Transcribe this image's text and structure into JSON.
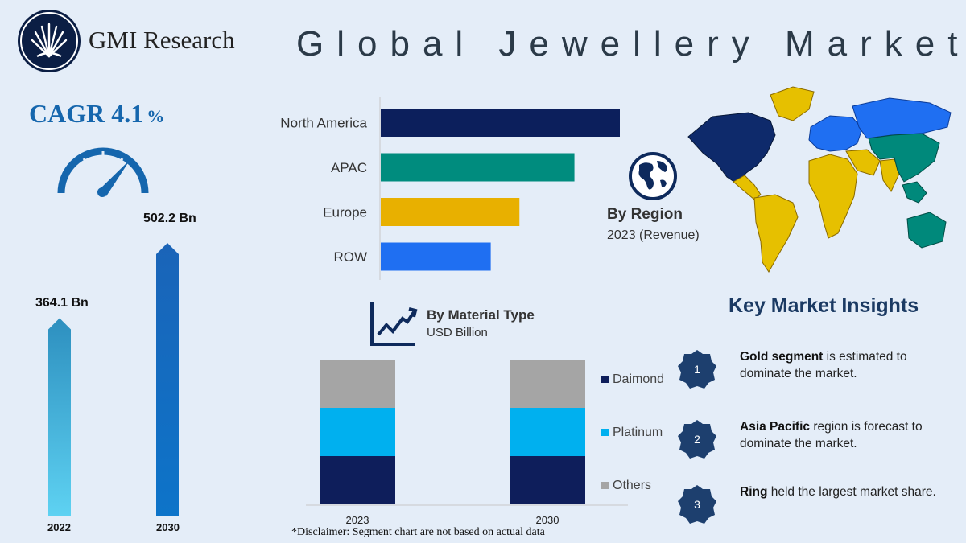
{
  "header": {
    "brand": "GMI Research",
    "title": "Global Jewellery Market"
  },
  "cagr": {
    "label": "CAGR 4.1",
    "unit": "%"
  },
  "growth": {
    "chart_data": {
      "type": "bar",
      "categories": [
        "2022",
        "2030"
      ],
      "values": [
        364.1,
        502.2
      ],
      "value_labels": [
        "364.1 Bn",
        "502.2 Bn"
      ]
    }
  },
  "region": {
    "title": "By Region",
    "subtitle": "2023 (Revenue)",
    "chart_data": {
      "type": "bar",
      "orientation": "horizontal",
      "categories": [
        "North America",
        "APAC",
        "Europe",
        "ROW"
      ],
      "values": [
        100,
        81,
        58,
        46
      ],
      "colors": [
        "#0c1f5c",
        "#008c7e",
        "#e8b000",
        "#1f6ff2"
      ]
    }
  },
  "material": {
    "title": "By Material Type",
    "subtitle": "USD Billion",
    "chart_data": {
      "type": "bar",
      "stacked": true,
      "categories": [
        "2023",
        "2030"
      ],
      "series": [
        {
          "name": "Daimond",
          "values": [
            1,
            1
          ],
          "color": "#0e1e5b"
        },
        {
          "name": "Platinum",
          "values": [
            1,
            1
          ],
          "color": "#00b0ef"
        },
        {
          "name": "Others",
          "values": [
            1,
            1
          ],
          "color": "#a5a5a5"
        }
      ],
      "legend": "right"
    },
    "disclaimer": "*Disclaimer:   Segment chart are not based on actual data"
  },
  "insights": {
    "title": "Key Market Insights",
    "items": [
      {
        "num": "1",
        "bold": "Gold segment",
        "text": " is estimated to dominate the market."
      },
      {
        "num": "2",
        "bold": "Asia Pacific",
        "text": " region is forecast to dominate the market."
      },
      {
        "num": "3",
        "bold": "Ring",
        "text": " held the largest market share."
      }
    ]
  },
  "map_colors": {
    "north_america": "#0e2a6b",
    "greenland": "#e6c000",
    "south_america": "#e6c000",
    "europe": "#1f6ff2",
    "russia": "#1f6ff2",
    "africa": "#e6c000",
    "middle_east": "#e6c000",
    "asia": "#00897b",
    "india": "#e6c000",
    "oceania": "#00897b"
  }
}
